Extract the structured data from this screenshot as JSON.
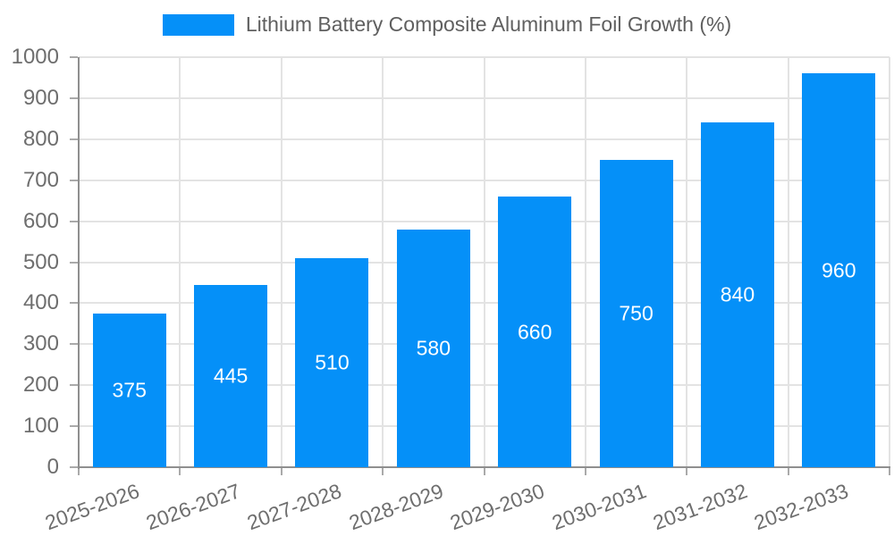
{
  "legend": {
    "label": "Lithium Battery Composite Aluminum Foil Growth (%)"
  },
  "chart_data": {
    "type": "bar",
    "title": "Lithium Battery Composite Aluminum Foil Growth (%)",
    "categories": [
      "2025-2026",
      "2026-2027",
      "2027-2028",
      "2028-2029",
      "2029-2030",
      "2030-2031",
      "2031-2032",
      "2032-2033"
    ],
    "values": [
      375,
      445,
      510,
      580,
      660,
      750,
      840,
      960
    ],
    "series": [
      {
        "name": "Lithium Battery Composite Aluminum Foil Growth (%)",
        "values": [
          375,
          445,
          510,
          580,
          660,
          750,
          840,
          960
        ]
      }
    ],
    "xlabel": "",
    "ylabel": "",
    "ylim": [
      0,
      1000
    ],
    "ytick_interval": 100,
    "ytick_labels": [
      "0",
      "100",
      "200",
      "300",
      "400",
      "500",
      "600",
      "700",
      "800",
      "900",
      "1000"
    ],
    "grid": true,
    "legend_position": "top-center",
    "x_label_rotation_deg": -20,
    "bar_color": "#0590f8",
    "bar_label_color": "#ffffff",
    "axis_color": "#8f8f8f",
    "grid_color": "#e3e3e3",
    "tick_label_color": "#6e6e6e"
  }
}
